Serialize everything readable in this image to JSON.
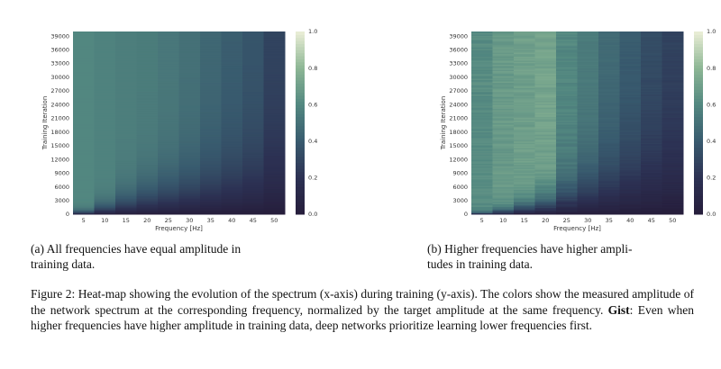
{
  "panel_a": {
    "caption": "(a) All frequencies have equal amplitude in training data.",
    "caption_line1": "(a) All frequencies have equal amplitude in",
    "caption_line2": "training data.",
    "xlabel": "Frequency [Hz]",
    "ylabel": "Training Iteration",
    "xticks": [
      "5",
      "10",
      "15",
      "20",
      "25",
      "30",
      "35",
      "40",
      "45",
      "50"
    ],
    "yticks": [
      "0",
      "3000",
      "6000",
      "9000",
      "12000",
      "15000",
      "18000",
      "21000",
      "24000",
      "27000",
      "30000",
      "33000",
      "36000",
      "39000"
    ],
    "colorbar_ticks": [
      "0.0",
      "0.2",
      "0.4",
      "0.6",
      "0.8",
      "1.0"
    ]
  },
  "panel_b": {
    "caption": "(b) Higher frequencies have higher amplitudes in training data.",
    "caption_line1": "(b) Higher frequencies have higher ampli-",
    "caption_line2": "tudes in training data.",
    "xlabel": "Frequency [Hz]",
    "ylabel": "Training Iteration",
    "xticks": [
      "5",
      "10",
      "15",
      "20",
      "25",
      "30",
      "35",
      "40",
      "45",
      "50"
    ],
    "yticks": [
      "0",
      "3000",
      "6000",
      "9000",
      "12000",
      "15000",
      "18000",
      "21000",
      "24000",
      "27000",
      "30000",
      "33000",
      "36000",
      "39000"
    ],
    "colorbar_ticks": [
      "0.0",
      "0.2",
      "0.4",
      "0.6",
      "0.8",
      "1.0"
    ]
  },
  "figure_caption": {
    "label": "Figure 2:",
    "text": "Heat-map showing the evolution of the spectrum (x-axis) during training (y-axis). The colors show the measured amplitude of the network spectrum at the corresponding frequency, normalized by the target amplitude at the same frequency.",
    "gist_label": "Gist",
    "gist_text": ": Even when higher frequencies have higher amplitude in training data, deep networks prioritize learning lower frequencies first."
  },
  "chart_data": [
    {
      "type": "heatmap",
      "title": "",
      "xlabel": "Frequency [Hz]",
      "ylabel": "Training Iteration",
      "x": [
        5,
        10,
        15,
        20,
        25,
        30,
        35,
        40,
        45,
        50
      ],
      "ylim": [
        0,
        40000
      ],
      "colorbar_range": [
        0.0,
        1.0
      ],
      "plateau_values": [
        0.6,
        0.58,
        0.56,
        0.55,
        0.53,
        0.5,
        0.46,
        0.42,
        0.38,
        0.3
      ],
      "convergence_iteration": [
        2000,
        5000,
        9000,
        13000,
        16000,
        19000,
        22000,
        25000,
        28000,
        34000
      ]
    },
    {
      "type": "heatmap",
      "title": "",
      "xlabel": "Frequency [Hz]",
      "ylabel": "Training Iteration",
      "x": [
        5,
        10,
        15,
        20,
        25,
        30,
        35,
        40,
        45,
        50
      ],
      "ylim": [
        0,
        40000
      ],
      "colorbar_range": [
        0.0,
        1.0
      ],
      "plateau_values": [
        0.62,
        0.68,
        0.7,
        0.72,
        0.6,
        0.55,
        0.48,
        0.42,
        0.35,
        0.3
      ],
      "convergence_iteration": [
        1000,
        3000,
        6000,
        10000,
        16000,
        22000,
        27000,
        32000,
        36000,
        40000
      ]
    }
  ]
}
